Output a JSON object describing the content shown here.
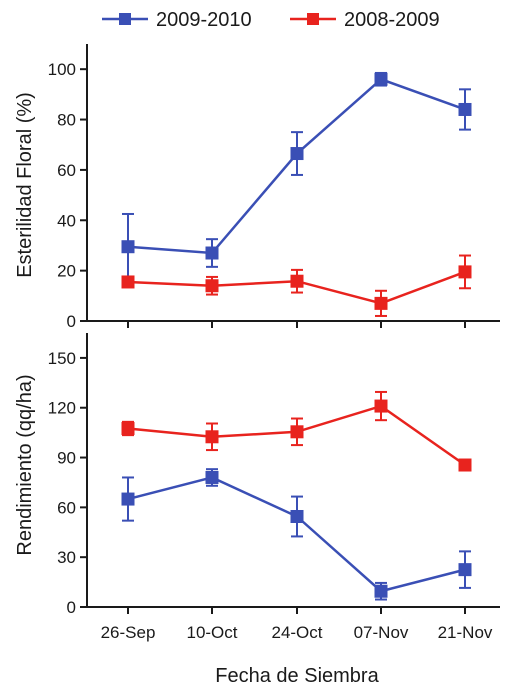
{
  "legend": [
    {
      "label": "2009-2010",
      "color": "#3a4fb5"
    },
    {
      "label": "2008-2009",
      "color": "#e8231e"
    }
  ],
  "xlabel": "Fecha de Siembra",
  "chart_data": [
    {
      "type": "line",
      "ylabel": "Esterilidad Floral (%)",
      "categories": [
        "26-Sep",
        "10-Oct",
        "24-Oct",
        "07-Nov",
        "21-Nov"
      ],
      "ylim": [
        0,
        110
      ],
      "yticks": [
        0,
        20,
        40,
        60,
        80,
        100
      ],
      "yticks_text": [
        "0",
        "20",
        "40",
        "60",
        "80",
        "100"
      ],
      "series": [
        {
          "name": "2009-2010",
          "color": "#3a4fb5",
          "values": [
            29.5,
            27,
            66.5,
            96,
            84
          ],
          "errors": [
            13,
            5.5,
            8.5,
            2.5,
            8
          ]
        },
        {
          "name": "2008-2009",
          "color": "#e8231e",
          "values": [
            15.5,
            14,
            15.8,
            7,
            19.5
          ],
          "errors": [
            2,
            3.5,
            4.5,
            5,
            6.5
          ]
        }
      ]
    },
    {
      "type": "line",
      "ylabel": "Rendimiento (qq/ha)",
      "categories": [
        "26-Sep",
        "10-Oct",
        "24-Oct",
        "07-Nov",
        "21-Nov"
      ],
      "ylim": [
        0,
        165
      ],
      "yticks": [
        0,
        30,
        60,
        90,
        120,
        150
      ],
      "yticks_text": [
        "0",
        "30",
        "60",
        "90",
        "120",
        "150"
      ],
      "series": [
        {
          "name": "2009-2010",
          "color": "#3a4fb5",
          "values": [
            65,
            78,
            54.5,
            9.5,
            22.5
          ],
          "errors": [
            13,
            5,
            12,
            5,
            11
          ]
        },
        {
          "name": "2008-2009",
          "color": "#e8231e",
          "values": [
            107.5,
            102.5,
            105.5,
            121,
            85.5
          ],
          "errors": [
            4,
            8,
            8,
            8.5,
            2.5
          ]
        }
      ]
    }
  ]
}
